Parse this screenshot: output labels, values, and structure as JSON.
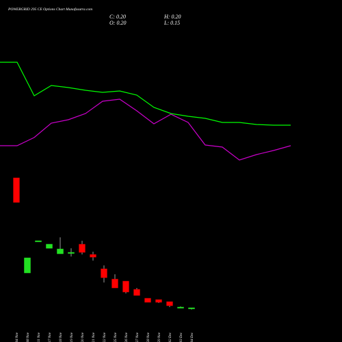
{
  "chart_data": [
    {
      "type": "candlestick",
      "title": "POWERGRID 295 CE Options  Chart Munafasutra.com",
      "ohlc_labels": {
        "close": "C: 0.20",
        "high": "H: 0.20",
        "open": "O: 0.20",
        "low": "L: 0.15"
      },
      "categories": [
        "04 Nov",
        "08 Nov",
        "11 Nov",
        "17 Nov",
        "18 Nov",
        "19 Nov",
        "20 Nov",
        "21 Nov",
        "22 Nov",
        "25 Nov",
        "26 Nov",
        "27 Nov",
        "28 Nov",
        "29 Nov",
        "02 Dec",
        "03 Dec",
        "04 Dec"
      ],
      "open": [
        4.0,
        1.22,
        2.16,
        1.94,
        1.78,
        1.8,
        2.06,
        1.76,
        1.34,
        1.04,
        0.98,
        0.74,
        0.48,
        0.44,
        0.38,
        0.22,
        0.2
      ],
      "high": [
        4.0,
        1.66,
        2.16,
        2.06,
        2.26,
        1.94,
        2.16,
        1.84,
        1.44,
        1.18,
        0.98,
        0.78,
        0.48,
        0.44,
        0.38,
        0.24,
        0.2
      ],
      "low": [
        3.28,
        1.22,
        2.16,
        1.94,
        1.78,
        1.7,
        1.76,
        1.58,
        0.94,
        0.78,
        0.62,
        0.56,
        0.36,
        0.34,
        0.22,
        0.2,
        0.15
      ],
      "close": [
        3.28,
        1.66,
        2.16,
        2.06,
        1.92,
        1.82,
        1.82,
        1.68,
        1.08,
        0.78,
        0.66,
        0.56,
        0.36,
        0.36,
        0.26,
        0.22,
        0.2
      ],
      "up_color": "#22e022",
      "down_color": "#ff0000",
      "ylim": [
        0,
        9.2
      ]
    },
    {
      "type": "line",
      "series": [
        {
          "color": "#00ff00",
          "values": [
            7.38,
            7.38,
            6.4,
            6.7,
            6.64,
            6.56,
            6.5,
            6.54,
            6.42,
            6.06,
            5.88,
            5.8,
            5.74,
            5.62,
            5.62,
            5.56,
            5.54,
            5.54
          ]
        },
        {
          "color": "#cc00cc",
          "values": [
            4.94,
            4.94,
            5.18,
            5.6,
            5.7,
            5.88,
            6.24,
            6.3,
            5.96,
            5.58,
            5.86,
            5.62,
            4.96,
            4.9,
            4.52,
            4.68,
            4.8,
            4.94
          ]
        }
      ],
      "ylim": [
        0,
        9.2
      ]
    }
  ]
}
